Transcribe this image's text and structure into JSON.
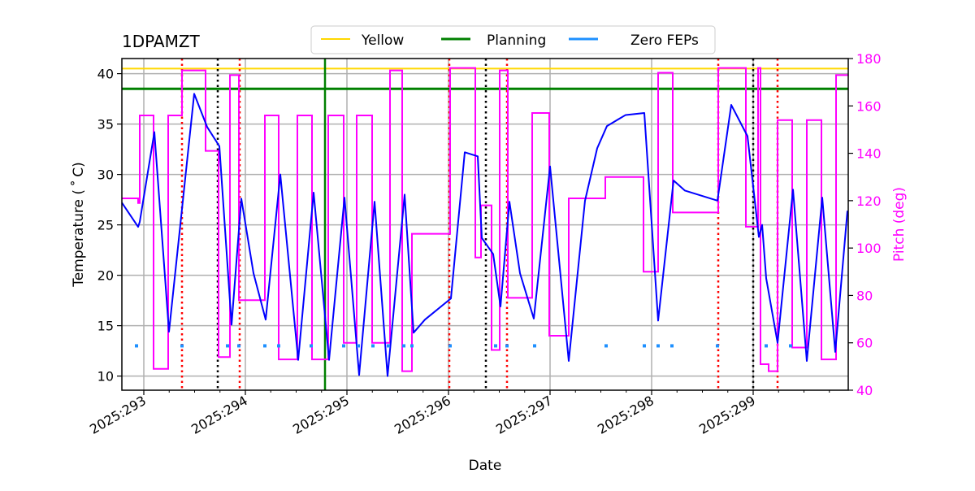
{
  "chart_data": {
    "type": "line",
    "title": "1DPAMZT",
    "xlabel": "Date",
    "ylabel": "Temperature ($^\\circ$C)",
    "ylabel_display": "Temperature ( ˚ C)",
    "y2label": "Pitch (deg)",
    "xlim": [
      292.784,
      299.936
    ],
    "ylim": [
      8.6,
      41.5
    ],
    "y2lim": [
      40,
      180
    ],
    "grid": true,
    "legend_placement": "top-center",
    "x_ticks": [
      {
        "value": 293,
        "label": "2025:293"
      },
      {
        "value": 294,
        "label": "2025:294"
      },
      {
        "value": 295,
        "label": "2025:295"
      },
      {
        "value": 296,
        "label": "2025:296"
      },
      {
        "value": 297,
        "label": "2025:297"
      },
      {
        "value": 298,
        "label": "2025:298"
      },
      {
        "value": 299,
        "label": "2025:299"
      }
    ],
    "y_ticks": [
      10,
      15,
      20,
      25,
      30,
      35,
      40
    ],
    "y2_ticks": [
      40,
      60,
      80,
      100,
      120,
      140,
      160,
      180
    ],
    "legend": [
      {
        "name": "Yellow",
        "color": "#ffd700"
      },
      {
        "name": "Planning",
        "color": "#008000"
      },
      {
        "name": "Zero FEPs",
        "color": "#1e90ff"
      }
    ],
    "limits": {
      "yellow": 40.5,
      "planning": 38.5
    },
    "temperature_color": "#0000ff",
    "pitch_color": "#ff00ff",
    "temperature": [
      [
        292.784,
        27.2
      ],
      [
        292.944,
        24.8
      ],
      [
        292.96,
        25.3
      ],
      [
        293.104,
        34.2
      ],
      [
        293.248,
        14.4
      ],
      [
        293.496,
        38.0
      ],
      [
        293.624,
        34.7
      ],
      [
        293.744,
        32.8
      ],
      [
        293.864,
        15.1
      ],
      [
        293.96,
        27.6
      ],
      [
        294.08,
        20.2
      ],
      [
        294.2,
        15.6
      ],
      [
        294.344,
        30.0
      ],
      [
        294.52,
        11.6
      ],
      [
        294.672,
        28.2
      ],
      [
        294.824,
        11.6
      ],
      [
        294.976,
        27.7
      ],
      [
        295.12,
        10.1
      ],
      [
        295.272,
        27.3
      ],
      [
        295.4,
        10.0
      ],
      [
        295.568,
        28.0
      ],
      [
        295.656,
        14.3
      ],
      [
        295.768,
        15.6
      ],
      [
        296.024,
        17.7
      ],
      [
        296.16,
        32.2
      ],
      [
        296.288,
        31.8
      ],
      [
        296.328,
        23.7
      ],
      [
        296.44,
        22.1
      ],
      [
        296.512,
        16.9
      ],
      [
        296.6,
        27.3
      ],
      [
        296.704,
        20.2
      ],
      [
        296.84,
        15.7
      ],
      [
        297.0,
        30.8
      ],
      [
        297.184,
        11.5
      ],
      [
        297.344,
        27.4
      ],
      [
        297.464,
        32.6
      ],
      [
        297.56,
        34.8
      ],
      [
        297.744,
        35.9
      ],
      [
        297.928,
        36.1
      ],
      [
        298.064,
        15.5
      ],
      [
        298.216,
        29.4
      ],
      [
        298.328,
        28.4
      ],
      [
        298.648,
        27.4
      ],
      [
        298.784,
        36.9
      ],
      [
        298.944,
        33.8
      ],
      [
        299.056,
        23.8
      ],
      [
        299.088,
        25.0
      ],
      [
        299.128,
        19.7
      ],
      [
        299.24,
        13.3
      ],
      [
        299.392,
        28.5
      ],
      [
        299.528,
        11.5
      ],
      [
        299.68,
        27.7
      ],
      [
        299.808,
        12.4
      ],
      [
        299.928,
        26.4
      ]
    ],
    "pitch_steps": [
      [
        292.784,
        121
      ],
      [
        292.944,
        119
      ],
      [
        292.96,
        156
      ],
      [
        293.096,
        49
      ],
      [
        293.24,
        156
      ],
      [
        293.376,
        175
      ],
      [
        293.608,
        141
      ],
      [
        293.736,
        54
      ],
      [
        293.848,
        173
      ],
      [
        293.936,
        78
      ],
      [
        294.192,
        156
      ],
      [
        294.328,
        53
      ],
      [
        294.512,
        156
      ],
      [
        294.656,
        53
      ],
      [
        294.816,
        156
      ],
      [
        294.968,
        60
      ],
      [
        295.096,
        156
      ],
      [
        295.248,
        60
      ],
      [
        295.424,
        175
      ],
      [
        295.544,
        48
      ],
      [
        295.64,
        106
      ],
      [
        296.016,
        176
      ],
      [
        296.264,
        96
      ],
      [
        296.32,
        118
      ],
      [
        296.424,
        57
      ],
      [
        296.504,
        175
      ],
      [
        296.584,
        79
      ],
      [
        296.824,
        157
      ],
      [
        296.992,
        63
      ],
      [
        297.184,
        121
      ],
      [
        297.544,
        130
      ],
      [
        297.92,
        90
      ],
      [
        298.064,
        174
      ],
      [
        298.208,
        115
      ],
      [
        298.656,
        176
      ],
      [
        298.928,
        109
      ],
      [
        299.048,
        176
      ],
      [
        299.072,
        51
      ],
      [
        299.152,
        48
      ],
      [
        299.24,
        154
      ],
      [
        299.384,
        58
      ],
      [
        299.528,
        154
      ],
      [
        299.672,
        53
      ],
      [
        299.816,
        173
      ],
      [
        299.936,
        173
      ]
    ],
    "zero_fep_level": 13,
    "zero_feps": [
      292.928,
      293.376,
      293.824,
      293.936,
      294.192,
      294.328,
      294.648,
      294.968,
      295.112,
      295.256,
      295.408,
      295.56,
      295.64,
      296.016,
      296.464,
      296.576,
      296.848,
      297.552,
      297.928,
      298.064,
      298.2,
      298.648,
      299.128,
      299.368
    ],
    "red_dotted_lines": [
      293.376,
      293.944,
      296.008,
      296.576,
      298.656,
      299.24
    ],
    "black_dotted_lines": [
      293.728,
      296.368,
      299.0
    ],
    "green_lines": [
      294.784
    ]
  }
}
